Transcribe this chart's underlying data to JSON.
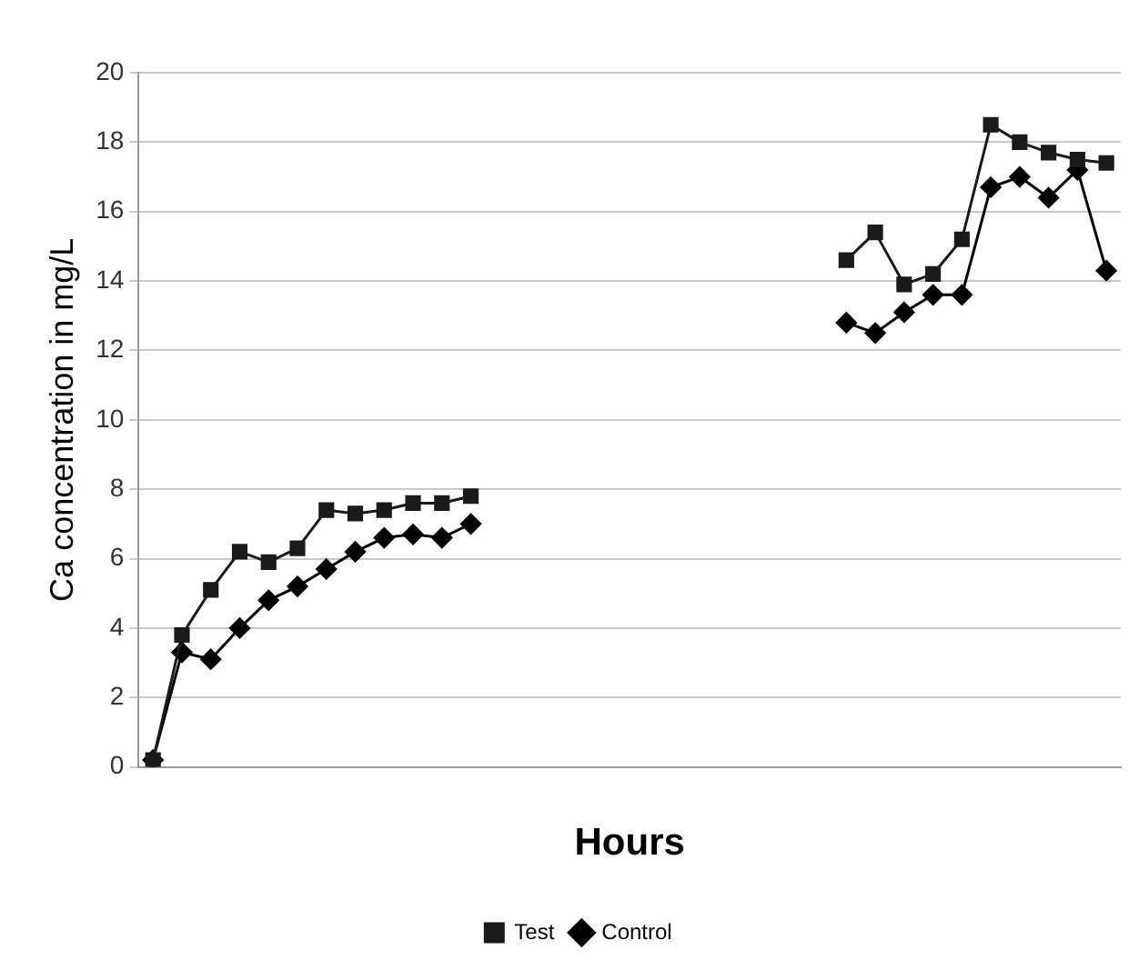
{
  "chart_data": {
    "type": "line",
    "xlabel": "Hours",
    "ylabel": "Ca concentration in mg/L",
    "categories": [
      null,
      null,
      null,
      null,
      null,
      null,
      null,
      null,
      null,
      null,
      null,
      null,
      null,
      null,
      null,
      null,
      null,
      null,
      null,
      null,
      null,
      null,
      null,
      null,
      null,
      null,
      null,
      null,
      null,
      null,
      null,
      null,
      null,
      null
    ],
    "series": [
      {
        "name": "Control",
        "color": "#000000",
        "marker": "diamond",
        "values": [
          0.2,
          3.3,
          3.1,
          4.0,
          4.8,
          5.2,
          5.7,
          6.2,
          6.6,
          6.7,
          6.6,
          7.0,
          null,
          null,
          null,
          null,
          null,
          null,
          null,
          null,
          null,
          null,
          null,
          null,
          12.8,
          12.5,
          13.1,
          13.6,
          13.6,
          16.7,
          17.0,
          16.4,
          17.2,
          14.3
        ]
      },
      {
        "name": "Test",
        "color": "#1a1a1a",
        "marker": "square",
        "values": [
          0.2,
          3.8,
          5.1,
          6.2,
          5.9,
          6.3,
          7.4,
          7.3,
          7.4,
          7.6,
          7.6,
          7.8,
          null,
          null,
          null,
          null,
          null,
          null,
          null,
          null,
          null,
          null,
          null,
          null,
          14.6,
          15.4,
          13.9,
          14.2,
          15.2,
          18.5,
          18.0,
          17.7,
          17.5,
          17.4
        ]
      }
    ],
    "ylim": [
      0,
      20
    ],
    "yticks": [
      0,
      2,
      4,
      6,
      8,
      10,
      12,
      14,
      16,
      18,
      20
    ],
    "grid": "y",
    "legend": "bottom",
    "tick_labels": "y",
    "line_style": "solid"
  }
}
